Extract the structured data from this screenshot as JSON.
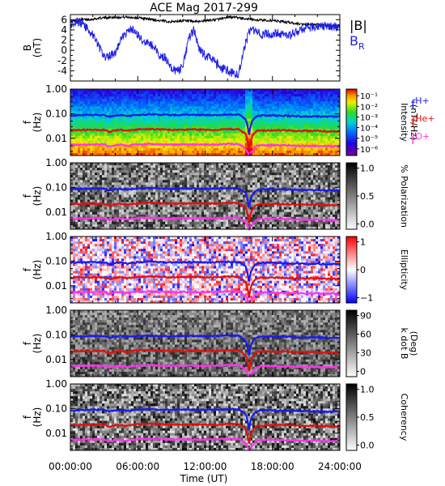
{
  "title": "ACE Mag 2017-299",
  "xlabel": "Time (UT)",
  "x_tick_labels": [
    "00:00:00",
    "06:00:00",
    "12:00:00",
    "18:00:00",
    "24:00:00"
  ],
  "colors": {
    "B_total": "#000000",
    "B_R": "#1f1fe6",
    "f_H": "#1a1aee",
    "f_He": "#e01010",
    "f_O": "#ff33ee"
  },
  "chart_data": [
    {
      "type": "line",
      "ylabel_line1": "B",
      "ylabel_line2": "(nT)",
      "ylim": [
        -6,
        7
      ],
      "y_tick_labels": [
        "6",
        "4",
        "2",
        "0",
        "-2",
        "-4"
      ],
      "x_range_hours": [
        0,
        24
      ],
      "series": [
        {
          "name": "|B|",
          "x": [
            0,
            1,
            2,
            3,
            4,
            5,
            6,
            7,
            8,
            9,
            10,
            11,
            12,
            13,
            14,
            15,
            16,
            17,
            18,
            19,
            20,
            21,
            22,
            23,
            24
          ],
          "values": [
            5.6,
            6.0,
            6.1,
            6.4,
            6.5,
            6.5,
            6.4,
            6.1,
            5.8,
            5.6,
            5.8,
            5.6,
            5.8,
            6.0,
            6.5,
            6.4,
            6.1,
            5.9,
            5.8,
            5.6,
            5.3,
            5.0,
            5.0,
            4.9,
            4.7
          ]
        },
        {
          "name": "B_R",
          "x": [
            0,
            0.5,
            1,
            1.5,
            2,
            2.5,
            3,
            3.5,
            4,
            4.5,
            5,
            5.5,
            6,
            6.5,
            7,
            7.5,
            8,
            8.5,
            9,
            9.5,
            10,
            10.5,
            11,
            11.5,
            12,
            12.5,
            13,
            13.5,
            14,
            14.5,
            15,
            15.5,
            16,
            16.5,
            17,
            17.5,
            18,
            18.5,
            19,
            19.5,
            20,
            21,
            22,
            23,
            24
          ],
          "values": [
            5.0,
            5.8,
            5.2,
            4.2,
            3.0,
            1.0,
            -1.5,
            -1.0,
            -0.5,
            2.0,
            3.5,
            4.0,
            3.0,
            1.5,
            1.5,
            0.5,
            -1.0,
            -1.5,
            -3.5,
            -4.0,
            -3.5,
            2.0,
            4.0,
            0.0,
            -1.0,
            -1.5,
            -2.5,
            -3.5,
            -4.0,
            -4.5,
            -4.5,
            0.5,
            4.0,
            3.8,
            3.0,
            3.5,
            3.0,
            3.5,
            3.0,
            2.8,
            3.5,
            4.5,
            4.5,
            4.7,
            4.5
          ]
        }
      ],
      "legend": [
        {
          "text": "|B|",
          "color": "#000000"
        },
        {
          "text": "B",
          "sub": "R",
          "color": "#1f1fe6"
        }
      ]
    },
    {
      "type": "heatmap",
      "ylabel_line1": "f",
      "ylabel_line2": "(Hz)",
      "y_axis": "log frequency",
      "ylim": [
        0.002,
        1.0
      ],
      "y_tick_labels": [
        "1.00",
        "0.10",
        "0.01"
      ],
      "colorbar": {
        "label_line1": "Intensity",
        "label_line2": "(nT²/Hz)",
        "colormap": "rainbow",
        "scale": "log",
        "tick_labels": [
          "10⁻¹",
          "10⁻²",
          "10⁻³",
          "10⁻⁴",
          "10⁻⁵",
          "10⁻⁶"
        ]
      },
      "legend": [
        {
          "text": "f",
          "sub": "H+",
          "color": "#1a1aee"
        },
        {
          "text": "f",
          "sub": "He+",
          "color": "#e01010"
        },
        {
          "text": "f",
          "sub": "O+",
          "color": "#ff33ee"
        }
      ]
    },
    {
      "type": "heatmap",
      "ylabel_line1": "f",
      "ylabel_line2": "(Hz)",
      "y_axis": "log frequency",
      "ylim": [
        0.002,
        1.0
      ],
      "y_tick_labels": [
        "1.00",
        "0.10",
        "0.01"
      ],
      "colorbar": {
        "label_line1": "% Polarization",
        "label_line2": "",
        "colormap": "gray",
        "scale": "linear",
        "tick_labels": [
          "1.0",
          "0.5",
          "0.0"
        ]
      }
    },
    {
      "type": "heatmap",
      "ylabel_line1": "f",
      "ylabel_line2": "(Hz)",
      "y_axis": "log frequency",
      "ylim": [
        0.002,
        1.0
      ],
      "y_tick_labels": [
        "1.00",
        "0.10",
        "0.01"
      ],
      "colorbar": {
        "label_line1": "Ellipticity",
        "label_line2": "",
        "colormap": "blue-white-red",
        "scale": "linear",
        "tick_labels": [
          "1",
          "0",
          "−1"
        ]
      }
    },
    {
      "type": "heatmap",
      "ylabel_line1": "f",
      "ylabel_line2": "(Hz)",
      "y_axis": "log frequency",
      "ylim": [
        0.002,
        1.0
      ],
      "y_tick_labels": [
        "1.00",
        "0.10",
        "0.01"
      ],
      "colorbar": {
        "label_line1": "k dot B",
        "label_line2": "(Deg)",
        "colormap": "gray",
        "scale": "linear",
        "tick_labels": [
          "90",
          "60",
          "30",
          "0"
        ]
      }
    },
    {
      "type": "heatmap",
      "ylabel_line1": "f",
      "ylabel_line2": "(Hz)",
      "y_axis": "log frequency",
      "ylim": [
        0.002,
        1.0
      ],
      "y_tick_labels": [
        "1.00",
        "0.10",
        "0.01"
      ],
      "colorbar": {
        "label_line1": "Coherency",
        "label_line2": "",
        "colormap": "gray",
        "scale": "linear",
        "tick_labels": [
          "1.0",
          "0.5",
          "0.0"
        ]
      }
    }
  ],
  "gyrofrequency_curves": {
    "x_hours": [
      0,
      1,
      2,
      3,
      3.5,
      4,
      4.5,
      5,
      6,
      7,
      8,
      9,
      10,
      11,
      12,
      13,
      14,
      15,
      15.6,
      15.9,
      16.2,
      16.6,
      17,
      18,
      19,
      20,
      21,
      22,
      23,
      24
    ],
    "f_H_hz": [
      0.085,
      0.088,
      0.09,
      0.09,
      0.075,
      0.085,
      0.088,
      0.08,
      0.09,
      0.095,
      0.09,
      0.088,
      0.09,
      0.09,
      0.088,
      0.09,
      0.095,
      0.092,
      0.06,
      0.012,
      0.05,
      0.078,
      0.085,
      0.085,
      0.083,
      0.08,
      0.078,
      0.078,
      0.076,
      0.075
    ],
    "f_He_hz": [
      0.021,
      0.022,
      0.022,
      0.022,
      0.018,
      0.021,
      0.022,
      0.02,
      0.023,
      0.024,
      0.023,
      0.022,
      0.022,
      0.023,
      0.022,
      0.022,
      0.024,
      0.023,
      0.015,
      0.003,
      0.012,
      0.02,
      0.021,
      0.021,
      0.021,
      0.02,
      0.02,
      0.02,
      0.019,
      0.019
    ],
    "f_O_hz": [
      0.0053,
      0.0055,
      0.0056,
      0.0056,
      0.0046,
      0.0053,
      0.0055,
      0.005,
      0.0057,
      0.0059,
      0.0057,
      0.0055,
      0.0056,
      0.0056,
      0.0055,
      0.0056,
      0.0059,
      0.0058,
      0.0038,
      0.0021,
      0.003,
      0.0049,
      0.0053,
      0.0053,
      0.0052,
      0.005,
      0.0049,
      0.0049,
      0.0048,
      0.0047
    ]
  }
}
